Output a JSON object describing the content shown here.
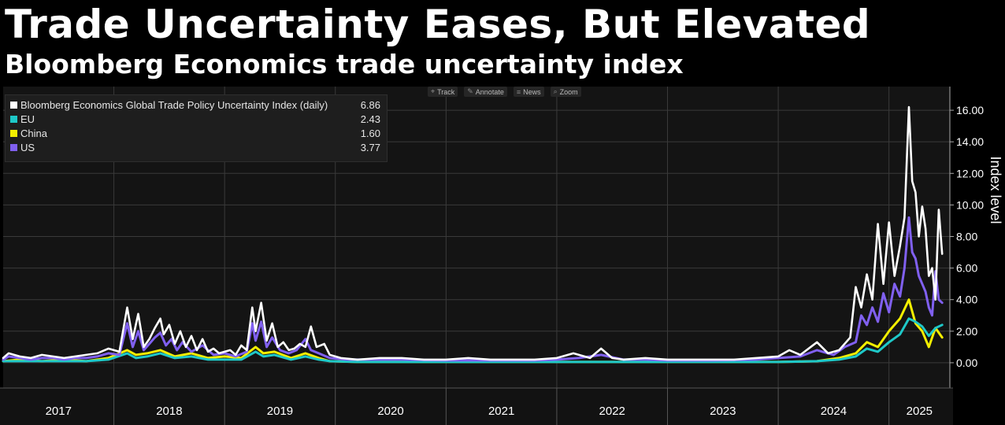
{
  "title": "Trade Uncertainty Eases, But Elevated",
  "subtitle": "Bloomberg Economics trade uncertainty index",
  "toolbar": [
    {
      "label": "Track",
      "icon": "crosshair-icon",
      "glyph": "⌖"
    },
    {
      "label": "Annotate",
      "icon": "pencil-icon",
      "glyph": "✎"
    },
    {
      "label": "News",
      "icon": "news-icon",
      "glyph": "≡"
    },
    {
      "label": "Zoom",
      "icon": "magnifier-icon",
      "glyph": "⌕"
    }
  ],
  "colors": {
    "background": "#000000",
    "plot_bg": "#141414",
    "global": "#ffffff",
    "eu": "#1ec8c8",
    "china": "#f2ee00",
    "us": "#8060f0",
    "grid": "#3a3a3a",
    "axis_text": "#ffffff"
  },
  "chart_data": {
    "type": "line",
    "title": "Trade Uncertainty Eases, But Elevated",
    "subtitle": "Bloomberg Economics trade uncertainty index",
    "xlabel": "",
    "ylabel": "Index level",
    "ylim": [
      -1.6,
      17.5
    ],
    "yticks": [
      0,
      2,
      4,
      6,
      8,
      10,
      12,
      14,
      16
    ],
    "ytick_labels": [
      "0.00",
      "2.00",
      "4.00",
      "6.00",
      "8.00",
      "10.00",
      "12.00",
      "14.00",
      "16.00"
    ],
    "xlim": [
      2017.0,
      2025.55
    ],
    "year_labels": [
      "2017",
      "2018",
      "2019",
      "2020",
      "2021",
      "2022",
      "2023",
      "2024",
      "2025"
    ],
    "legend_position": "top-left",
    "grid": true,
    "series": [
      {
        "name": "Bloomberg Economics Global Trade Policy Uncertainty Index (daily)",
        "last_value": "6.86",
        "color": "#ffffff",
        "x": [
          2017.0,
          2017.05,
          2017.15,
          2017.25,
          2017.35,
          2017.45,
          2017.55,
          2017.65,
          2017.75,
          2017.85,
          2017.95,
          2018.05,
          2018.12,
          2018.17,
          2018.22,
          2018.27,
          2018.32,
          2018.37,
          2018.42,
          2018.45,
          2018.5,
          2018.55,
          2018.6,
          2018.65,
          2018.7,
          2018.75,
          2018.8,
          2018.85,
          2018.9,
          2018.95,
          2019.0,
          2019.05,
          2019.1,
          2019.15,
          2019.2,
          2019.25,
          2019.28,
          2019.33,
          2019.38,
          2019.43,
          2019.48,
          2019.53,
          2019.58,
          2019.63,
          2019.68,
          2019.73,
          2019.78,
          2019.83,
          2019.9,
          2019.95,
          2020.05,
          2020.2,
          2020.4,
          2020.6,
          2020.8,
          2021.0,
          2021.2,
          2021.4,
          2021.6,
          2021.8,
          2022.0,
          2022.15,
          2022.3,
          2022.4,
          2022.5,
          2022.6,
          2022.8,
          2023.0,
          2023.2,
          2023.4,
          2023.6,
          2023.8,
          2024.0,
          2024.1,
          2024.2,
          2024.35,
          2024.45,
          2024.55,
          2024.65,
          2024.7,
          2024.75,
          2024.8,
          2024.85,
          2024.9,
          2024.95,
          2025.0,
          2025.05,
          2025.1,
          2025.14,
          2025.18,
          2025.21,
          2025.24,
          2025.27,
          2025.3,
          2025.33,
          2025.36,
          2025.39,
          2025.42,
          2025.45,
          2025.48
        ],
        "y": [
          0.3,
          0.6,
          0.4,
          0.3,
          0.5,
          0.4,
          0.3,
          0.4,
          0.5,
          0.6,
          0.9,
          0.7,
          3.5,
          1.5,
          3.1,
          1.0,
          1.5,
          2.2,
          2.8,
          1.8,
          2.4,
          1.2,
          2.0,
          1.0,
          1.7,
          0.8,
          1.5,
          0.7,
          0.9,
          0.6,
          0.7,
          0.8,
          0.5,
          1.1,
          0.8,
          3.5,
          2.0,
          3.8,
          1.4,
          2.5,
          1.0,
          1.3,
          0.8,
          0.9,
          1.2,
          1.0,
          2.3,
          1.0,
          1.2,
          0.5,
          0.3,
          0.2,
          0.3,
          0.3,
          0.2,
          0.2,
          0.3,
          0.2,
          0.2,
          0.2,
          0.3,
          0.6,
          0.3,
          0.9,
          0.3,
          0.2,
          0.3,
          0.2,
          0.2,
          0.2,
          0.2,
          0.3,
          0.4,
          0.8,
          0.5,
          1.3,
          0.6,
          0.8,
          1.6,
          4.8,
          3.5,
          5.6,
          4.0,
          8.8,
          5.0,
          8.9,
          5.5,
          7.4,
          9.2,
          16.2,
          11.5,
          10.8,
          8.0,
          9.9,
          8.5,
          5.5,
          6.0,
          4.0,
          9.7,
          6.9
        ]
      },
      {
        "name": "EU",
        "last_value": "2.43",
        "color": "#1ec8c8",
        "x": [
          2017.0,
          2017.15,
          2017.35,
          2017.55,
          2017.75,
          2017.95,
          2018.12,
          2018.2,
          2018.3,
          2018.42,
          2018.55,
          2018.7,
          2018.85,
          2019.0,
          2019.15,
          2019.28,
          2019.35,
          2019.45,
          2019.6,
          2019.73,
          2019.85,
          2019.95,
          2020.2,
          2020.6,
          2021.0,
          2021.5,
          2022.0,
          2022.4,
          2022.8,
          2023.2,
          2023.6,
          2024.0,
          2024.35,
          2024.55,
          2024.7,
          2024.8,
          2024.9,
          2025.0,
          2025.1,
          2025.18,
          2025.24,
          2025.3,
          2025.36,
          2025.42,
          2025.48
        ],
        "y": [
          0.1,
          0.1,
          0.1,
          0.1,
          0.1,
          0.2,
          0.6,
          0.3,
          0.4,
          0.6,
          0.3,
          0.4,
          0.2,
          0.2,
          0.2,
          0.7,
          0.4,
          0.5,
          0.2,
          0.4,
          0.2,
          0.1,
          0.05,
          0.05,
          0.05,
          0.05,
          0.05,
          0.05,
          0.05,
          0.05,
          0.05,
          0.05,
          0.1,
          0.2,
          0.4,
          0.9,
          0.7,
          1.3,
          1.8,
          2.8,
          2.6,
          2.3,
          1.7,
          2.2,
          2.4
        ]
      },
      {
        "name": "China",
        "last_value": "1.60",
        "color": "#f2ee00",
        "x": [
          2017.0,
          2017.15,
          2017.35,
          2017.55,
          2017.75,
          2017.95,
          2018.12,
          2018.2,
          2018.3,
          2018.42,
          2018.55,
          2018.7,
          2018.85,
          2019.0,
          2019.15,
          2019.28,
          2019.35,
          2019.45,
          2019.6,
          2019.73,
          2019.85,
          2019.95,
          2020.2,
          2020.6,
          2021.0,
          2021.5,
          2022.0,
          2022.4,
          2022.8,
          2023.2,
          2023.6,
          2024.0,
          2024.35,
          2024.55,
          2024.7,
          2024.8,
          2024.9,
          2025.0,
          2025.1,
          2025.18,
          2025.24,
          2025.3,
          2025.36,
          2025.42,
          2025.48
        ],
        "y": [
          0.1,
          0.2,
          0.1,
          0.2,
          0.1,
          0.3,
          0.8,
          0.5,
          0.6,
          0.8,
          0.4,
          0.6,
          0.3,
          0.4,
          0.3,
          1.0,
          0.6,
          0.7,
          0.3,
          0.6,
          0.3,
          0.1,
          0.05,
          0.05,
          0.05,
          0.05,
          0.05,
          0.05,
          0.05,
          0.05,
          0.05,
          0.05,
          0.1,
          0.3,
          0.6,
          1.3,
          1.0,
          2.0,
          2.8,
          4.0,
          2.5,
          2.0,
          1.0,
          2.2,
          1.6
        ]
      },
      {
        "name": "US",
        "last_value": "3.77",
        "color": "#8060f0",
        "x": [
          2017.0,
          2017.05,
          2017.15,
          2017.25,
          2017.35,
          2017.45,
          2017.55,
          2017.65,
          2017.75,
          2017.85,
          2017.95,
          2018.05,
          2018.12,
          2018.17,
          2018.22,
          2018.27,
          2018.32,
          2018.37,
          2018.42,
          2018.47,
          2018.52,
          2018.57,
          2018.62,
          2018.7,
          2018.8,
          2018.9,
          2019.0,
          2019.1,
          2019.2,
          2019.25,
          2019.28,
          2019.33,
          2019.38,
          2019.43,
          2019.5,
          2019.58,
          2019.65,
          2019.73,
          2019.78,
          2019.85,
          2019.95,
          2020.1,
          2020.3,
          2020.6,
          2021.0,
          2021.4,
          2021.8,
          2022.0,
          2022.2,
          2022.4,
          2022.6,
          2022.8,
          2023.0,
          2023.4,
          2023.8,
          2024.0,
          2024.2,
          2024.35,
          2024.5,
          2024.6,
          2024.7,
          2024.75,
          2024.8,
          2024.85,
          2024.9,
          2024.95,
          2025.0,
          2025.05,
          2025.1,
          2025.14,
          2025.18,
          2025.21,
          2025.24,
          2025.27,
          2025.3,
          2025.33,
          2025.36,
          2025.39,
          2025.42,
          2025.45,
          2025.48
        ],
        "y": [
          0.2,
          0.4,
          0.3,
          0.2,
          0.3,
          0.3,
          0.2,
          0.3,
          0.3,
          0.4,
          0.6,
          0.5,
          2.5,
          1.0,
          2.0,
          0.8,
          1.2,
          1.6,
          1.9,
          1.1,
          1.5,
          0.8,
          1.3,
          0.7,
          1.1,
          0.5,
          0.6,
          0.4,
          0.7,
          2.5,
          1.4,
          2.6,
          1.0,
          1.6,
          0.8,
          0.6,
          0.8,
          1.5,
          0.8,
          0.6,
          0.3,
          0.2,
          0.2,
          0.2,
          0.15,
          0.15,
          0.15,
          0.2,
          0.3,
          0.5,
          0.2,
          0.2,
          0.15,
          0.15,
          0.2,
          0.3,
          0.4,
          0.8,
          0.5,
          1.0,
          1.3,
          3.0,
          2.4,
          3.5,
          2.6,
          4.4,
          3.2,
          5.0,
          4.2,
          6.0,
          9.2,
          7.0,
          6.6,
          5.5,
          5.0,
          4.5,
          3.5,
          3.0,
          5.8,
          4.0,
          3.8
        ]
      }
    ]
  }
}
